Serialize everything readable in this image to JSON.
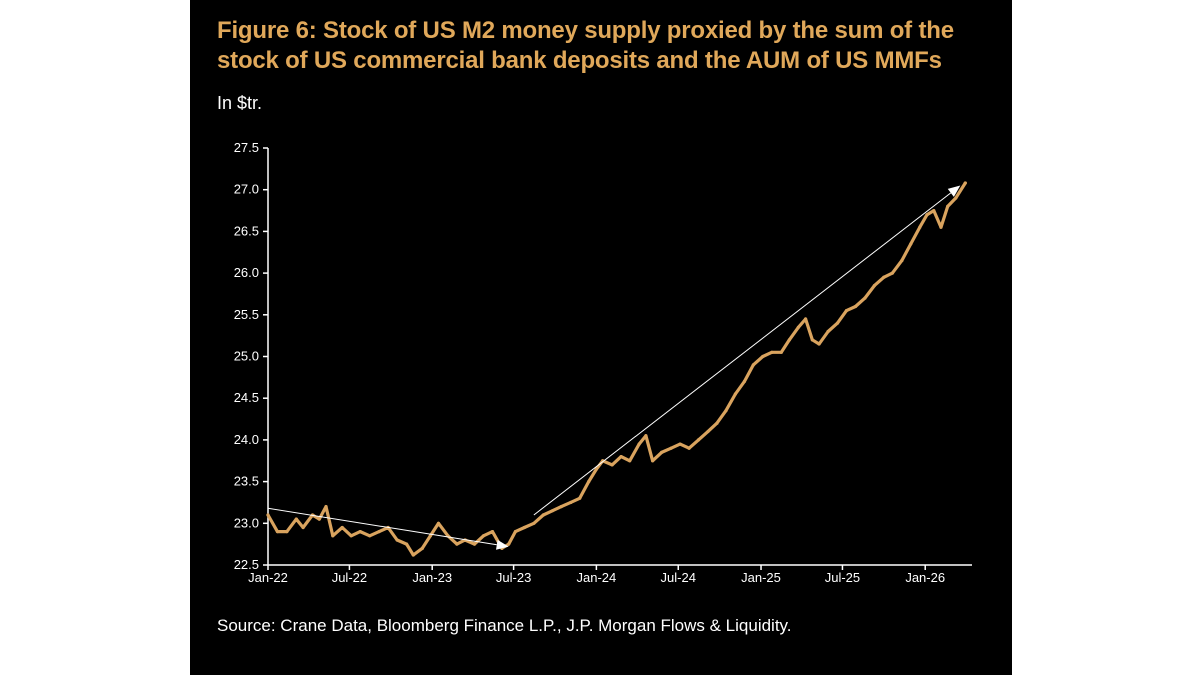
{
  "chart_data": {
    "type": "line",
    "title": "Figure 6: Stock of US M2 money supply proxied by the sum of the stock of US commercial bank deposits and the AUM of US MMFs",
    "ylabel": "In $tr.",
    "xlabel": "",
    "source": "Source: Crane Data, Bloomberg Finance L.P., J.P. Morgan Flows & Liquidity.",
    "ylim": [
      22.5,
      27.5
    ],
    "yticks": [
      "22.5",
      "23.0",
      "23.5",
      "24.0",
      "24.5",
      "25.0",
      "25.5",
      "26.0",
      "26.5",
      "27.0",
      "27.5"
    ],
    "xlim": [
      "2022-01-01",
      "2026-04-15"
    ],
    "xticks": [
      {
        "date": "2022-01-01",
        "label": "Jan-22"
      },
      {
        "date": "2022-07-01",
        "label": "Jul-22"
      },
      {
        "date": "2023-01-01",
        "label": "Jan-23"
      },
      {
        "date": "2023-07-01",
        "label": "Jul-23"
      },
      {
        "date": "2024-01-01",
        "label": "Jan-24"
      },
      {
        "date": "2024-07-01",
        "label": "Jul-24"
      },
      {
        "date": "2025-01-01",
        "label": "Jan-25"
      },
      {
        "date": "2025-07-01",
        "label": "Jul-25"
      },
      {
        "date": "2026-01-01",
        "label": "Jan-26"
      }
    ],
    "grid": false,
    "colors": {
      "line": "#d9a35e",
      "arrow": "#ffffff",
      "title": "#e0a85a",
      "background": "#000000"
    },
    "series": [
      {
        "x": [
          "2022-01-01",
          "2022-01-22",
          "2022-02-12",
          "2022-03-05",
          "2022-03-20",
          "2022-04-10",
          "2022-04-25",
          "2022-05-10",
          "2022-05-25",
          "2022-06-15",
          "2022-07-05",
          "2022-07-25",
          "2022-08-15",
          "2022-09-05",
          "2022-09-25",
          "2022-10-15",
          "2022-11-05",
          "2022-11-20",
          "2022-12-10",
          "2022-12-28",
          "2023-01-15",
          "2023-02-05",
          "2023-02-25",
          "2023-03-15",
          "2023-04-05",
          "2023-04-25",
          "2023-05-15",
          "2023-06-05",
          "2023-06-20",
          "2023-07-05",
          "2023-07-25",
          "2023-08-15",
          "2023-09-05",
          "2023-09-25",
          "2023-10-15",
          "2023-11-05",
          "2023-11-25",
          "2023-12-15",
          "2024-01-01",
          "2024-01-15",
          "2024-02-05",
          "2024-02-25",
          "2024-03-15",
          "2024-04-05",
          "2024-04-20",
          "2024-05-05",
          "2024-05-25",
          "2024-06-15",
          "2024-07-05",
          "2024-07-25",
          "2024-08-15",
          "2024-09-05",
          "2024-09-25",
          "2024-10-15",
          "2024-11-05",
          "2024-11-25",
          "2024-12-15",
          "2025-01-05",
          "2025-01-25",
          "2025-02-15",
          "2025-03-05",
          "2025-03-25",
          "2025-04-10",
          "2025-04-25",
          "2025-05-10",
          "2025-05-30",
          "2025-06-20",
          "2025-07-10",
          "2025-07-30",
          "2025-08-20",
          "2025-09-10",
          "2025-10-01",
          "2025-10-20",
          "2025-11-10",
          "2025-11-30",
          "2025-12-20",
          "2026-01-05",
          "2026-01-20",
          "2026-02-05",
          "2026-02-20",
          "2026-03-10",
          "2026-03-31"
        ],
        "y": [
          23.1,
          22.9,
          22.9,
          23.05,
          22.95,
          23.1,
          23.05,
          23.2,
          22.85,
          22.95,
          22.85,
          22.9,
          22.85,
          22.9,
          22.95,
          22.8,
          22.75,
          22.62,
          22.7,
          22.85,
          23.0,
          22.85,
          22.75,
          22.8,
          22.75,
          22.85,
          22.9,
          22.7,
          22.75,
          22.9,
          22.95,
          23.0,
          23.1,
          23.15,
          23.2,
          23.25,
          23.3,
          23.5,
          23.65,
          23.75,
          23.7,
          23.8,
          23.75,
          23.95,
          24.05,
          23.75,
          23.85,
          23.9,
          23.95,
          23.9,
          24.0,
          24.1,
          24.2,
          24.35,
          24.55,
          24.7,
          24.9,
          25.0,
          25.05,
          25.05,
          25.2,
          25.35,
          25.45,
          25.2,
          25.15,
          25.3,
          25.4,
          25.55,
          25.6,
          25.7,
          25.85,
          25.95,
          26.0,
          26.15,
          26.35,
          26.55,
          26.7,
          26.75,
          26.55,
          26.8,
          26.9,
          27.08
        ]
      }
    ],
    "annotations": [
      {
        "type": "arrow",
        "from": [
          "2022-01-01",
          23.18
        ],
        "to": [
          "2023-06-20",
          22.72
        ]
      },
      {
        "type": "arrow",
        "from": [
          "2023-08-15",
          23.1
        ],
        "to": [
          "2026-03-20",
          27.05
        ]
      }
    ]
  }
}
